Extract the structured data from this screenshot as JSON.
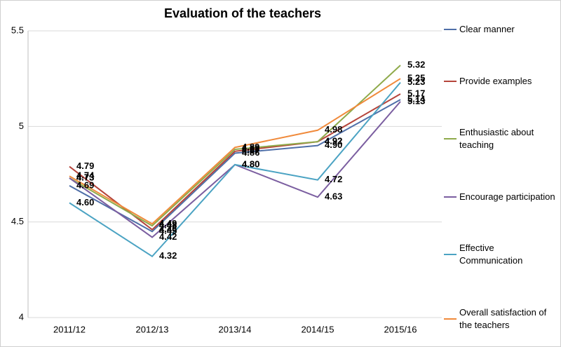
{
  "chart_data": {
    "type": "line",
    "title": "Evaluation of the teachers",
    "categories": [
      "2011/12",
      "2012/13",
      "2013/14",
      "2014/15",
      "2015/16"
    ],
    "ylim": [
      4,
      5.5
    ],
    "yticks": [
      4,
      4.5,
      5,
      5.5
    ],
    "grid": true,
    "legend": "right",
    "series": [
      {
        "name": "Clear manner",
        "color": "#4f6fa8",
        "values": [
          4.69,
          4.45,
          4.86,
          4.9,
          5.14
        ],
        "value_labels": [
          "4.69",
          "4.45",
          "4.86",
          "4.90",
          "5.14"
        ]
      },
      {
        "name": "Provide examples",
        "color": "#b5443b",
        "values": [
          4.79,
          4.46,
          4.87,
          4.92,
          5.17
        ],
        "value_labels": [
          "4.79",
          "4.46",
          "4.87",
          "4.92",
          "5.17"
        ]
      },
      {
        "name": "Enthusiastic about teaching",
        "color": "#8faa4b",
        "values": [
          4.73,
          4.48,
          4.88,
          4.92,
          5.32
        ],
        "value_labels": [
          "4.73",
          "4.48",
          "4.88",
          "4.92",
          "5.32"
        ]
      },
      {
        "name": "Encourage participation",
        "color": "#7b5ea0",
        "values": [
          4.73,
          4.42,
          4.8,
          4.63,
          5.13
        ],
        "value_labels": [
          "4.73",
          "4.42",
          "4.80",
          "4.63",
          "5.13"
        ]
      },
      {
        "name": "Effective Communication",
        "color": "#4ba3c3",
        "values": [
          4.6,
          4.32,
          4.8,
          4.72,
          5.23
        ],
        "value_labels": [
          "4.60",
          "4.32",
          "4.80",
          "4.72",
          "5.23"
        ]
      },
      {
        "name": "Overall satisfaction of the teachers",
        "color": "#f08a3b",
        "values": [
          4.74,
          4.49,
          4.89,
          4.98,
          5.25
        ],
        "value_labels": [
          "4.74",
          "4.49",
          "4.89",
          "4.98",
          "5.25"
        ]
      }
    ]
  }
}
